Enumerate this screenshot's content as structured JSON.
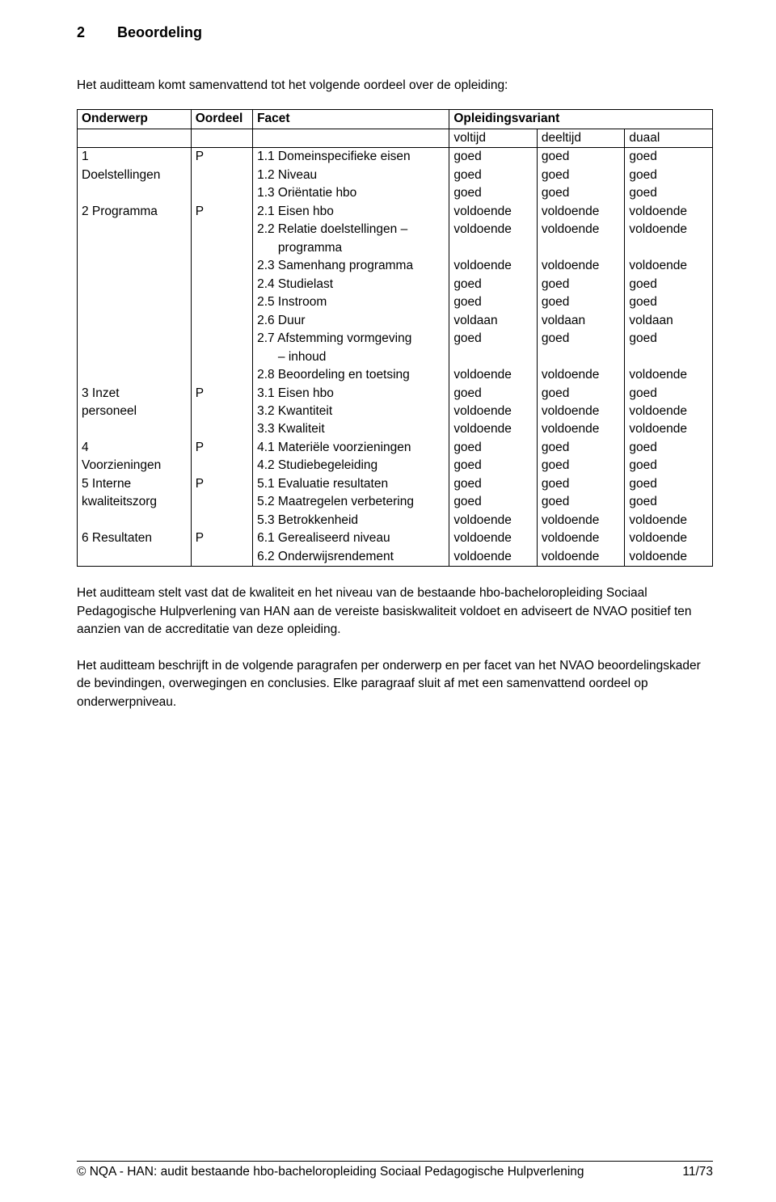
{
  "colors": {
    "text": "#000000",
    "background": "#ffffff",
    "border": "#000000"
  },
  "typography": {
    "font_family": "Arial",
    "body_fontsize_pt": 12,
    "heading_fontsize_pt": 13,
    "heading_weight": "bold"
  },
  "section": {
    "number": "2",
    "title": "Beoordeling"
  },
  "intro": "Het auditteam komt samenvattend tot het volgende oordeel over de opleiding:",
  "table": {
    "headers": {
      "onderwerp": "Onderwerp",
      "oordeel": "Oordeel",
      "facet": "Facet",
      "opleidingsvariant": "Opleidingsvariant"
    },
    "subheaders": {
      "voltijd": "voltijd",
      "deeltijd": "deeltijd",
      "duaal": "duaal"
    },
    "rows": [
      {
        "onderwerp": "1",
        "oordeel": "P",
        "facet": "1.1 Domeinspecifieke eisen",
        "voltijd": "goed",
        "deeltijd": "goed",
        "duaal": "goed"
      },
      {
        "onderwerp": "Doelstellingen",
        "oordeel": "",
        "facet": "1.2 Niveau",
        "voltijd": "goed",
        "deeltijd": "goed",
        "duaal": "goed"
      },
      {
        "onderwerp": "",
        "oordeel": "",
        "facet": "1.3 Oriëntatie hbo",
        "voltijd": "goed",
        "deeltijd": "goed",
        "duaal": "goed"
      },
      {
        "onderwerp": "2 Programma",
        "oordeel": "P",
        "facet": "2.1 Eisen hbo",
        "voltijd": "voldoende",
        "deeltijd": "voldoende",
        "duaal": "voldoende"
      },
      {
        "onderwerp": "",
        "oordeel": "",
        "facet": "2.2 Relatie doelstellingen –",
        "voltijd": "voldoende",
        "deeltijd": "voldoende",
        "duaal": "voldoende"
      },
      {
        "onderwerp": "",
        "oordeel": "",
        "facet": "      programma",
        "voltijd": "",
        "deeltijd": "",
        "duaal": ""
      },
      {
        "onderwerp": "",
        "oordeel": "",
        "facet": "2.3 Samenhang programma",
        "voltijd": "voldoende",
        "deeltijd": "voldoende",
        "duaal": "voldoende"
      },
      {
        "onderwerp": "",
        "oordeel": "",
        "facet": "2.4 Studielast",
        "voltijd": "goed",
        "deeltijd": "goed",
        "duaal": "goed"
      },
      {
        "onderwerp": "",
        "oordeel": "",
        "facet": "2.5 Instroom",
        "voltijd": "goed",
        "deeltijd": "goed",
        "duaal": "goed"
      },
      {
        "onderwerp": "",
        "oordeel": "",
        "facet": "2.6 Duur",
        "voltijd": "voldaan",
        "deeltijd": "voldaan",
        "duaal": "voldaan"
      },
      {
        "onderwerp": "",
        "oordeel": "",
        "facet": "2.7 Afstemming vormgeving",
        "voltijd": "goed",
        "deeltijd": "goed",
        "duaal": "goed"
      },
      {
        "onderwerp": "",
        "oordeel": "",
        "facet": "      – inhoud",
        "voltijd": "",
        "deeltijd": "",
        "duaal": ""
      },
      {
        "onderwerp": "",
        "oordeel": "",
        "facet": "2.8 Beoordeling en toetsing",
        "voltijd": "voldoende",
        "deeltijd": "voldoende",
        "duaal": "voldoende"
      },
      {
        "onderwerp": "3 Inzet",
        "oordeel": "P",
        "facet": "3.1 Eisen hbo",
        "voltijd": "goed",
        "deeltijd": "goed",
        "duaal": "goed"
      },
      {
        "onderwerp": "personeel",
        "oordeel": "",
        "facet": "3.2 Kwantiteit",
        "voltijd": "voldoende",
        "deeltijd": "voldoende",
        "duaal": "voldoende"
      },
      {
        "onderwerp": "",
        "oordeel": "",
        "facet": "3.3 Kwaliteit",
        "voltijd": "voldoende",
        "deeltijd": "voldoende",
        "duaal": "voldoende"
      },
      {
        "onderwerp": "4",
        "oordeel": "P",
        "facet": "4.1 Materiële voorzieningen",
        "voltijd": "goed",
        "deeltijd": "goed",
        "duaal": "goed"
      },
      {
        "onderwerp": "Voorzieningen",
        "oordeel": "",
        "facet": "4.2 Studiebegeleiding",
        "voltijd": "goed",
        "deeltijd": "goed",
        "duaal": "goed"
      },
      {
        "onderwerp": "5 Interne",
        "oordeel": "P",
        "facet": "5.1 Evaluatie resultaten",
        "voltijd": "goed",
        "deeltijd": "goed",
        "duaal": "goed"
      },
      {
        "onderwerp": "kwaliteitszorg",
        "oordeel": "",
        "facet": "5.2 Maatregelen verbetering",
        "voltijd": "goed",
        "deeltijd": "goed",
        "duaal": "goed"
      },
      {
        "onderwerp": "",
        "oordeel": "",
        "facet": "5.3 Betrokkenheid",
        "voltijd": "voldoende",
        "deeltijd": "voldoende",
        "duaal": "voldoende"
      },
      {
        "onderwerp": "6 Resultaten",
        "oordeel": "P",
        "facet": "6.1 Gerealiseerd niveau",
        "voltijd": "voldoende",
        "deeltijd": "voldoende",
        "duaal": "voldoende"
      },
      {
        "onderwerp": "",
        "oordeel": "",
        "facet": "6.2 Onderwijsrendement",
        "voltijd": "voldoende",
        "deeltijd": "voldoende",
        "duaal": "voldoende"
      }
    ]
  },
  "paragraphs": [
    "Het auditteam stelt vast dat de kwaliteit en het niveau van de bestaande hbo-bacheloropleiding Sociaal Pedagogische Hulpverlening van HAN aan de vereiste basiskwaliteit voldoet en adviseert de NVAO positief ten aanzien van de accreditatie van deze opleiding.",
    "Het auditteam beschrijft in de volgende paragrafen per onderwerp en per facet van het NVAO beoordelingskader de bevindingen, overwegingen en conclusies. Elke paragraaf sluit af met een samenvattend oordeel op onderwerpniveau."
  ],
  "footer": {
    "left": "© NQA - HAN: audit bestaande hbo-bacheloropleiding Sociaal Pedagogische Hulpverlening",
    "right": "11/73"
  }
}
